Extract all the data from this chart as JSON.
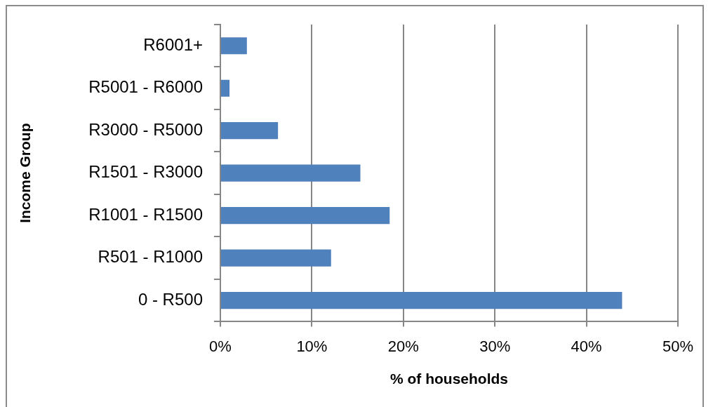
{
  "chart_data": {
    "type": "bar",
    "orientation": "horizontal",
    "categories": [
      "R6001+",
      "R5001 - R6000",
      "R3000 - R5000",
      "R1501 - R3000",
      "R1001 - R1500",
      "R501 - R1000",
      "0 - R500"
    ],
    "values": [
      2.9,
      1.0,
      6.3,
      15.3,
      18.5,
      12.1,
      43.9
    ],
    "color": "#4f81bd",
    "xlabel": "% of households",
    "ylabel": "Income Group",
    "xlim": [
      0,
      50
    ],
    "xticks": [
      {
        "value": 0,
        "label": "0%"
      },
      {
        "value": 10,
        "label": "10%"
      },
      {
        "value": 20,
        "label": "20%"
      },
      {
        "value": 30,
        "label": "30%"
      },
      {
        "value": 40,
        "label": "40%"
      },
      {
        "value": 50,
        "label": "50%"
      }
    ],
    "grid": "x"
  }
}
